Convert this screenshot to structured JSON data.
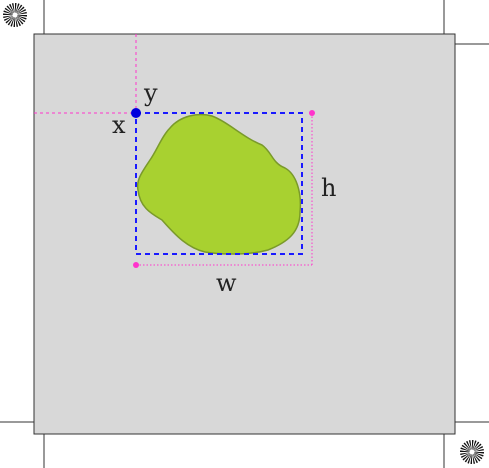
{
  "labels": {
    "x": "x",
    "y": "y",
    "w": "w",
    "h": "h"
  },
  "icons": {
    "top_left": "sunburst-icon",
    "bottom_right": "sunburst-icon"
  },
  "colors": {
    "canvas": "#d8d8d8",
    "frame": "#333333",
    "blob_fill": "#a8d130",
    "blob_stroke": "#7a9a2a",
    "bbox": "#1a1aff",
    "measure_lines": "#ff33cc",
    "origin_dot": "#0000dd",
    "label_text": "#222222"
  }
}
